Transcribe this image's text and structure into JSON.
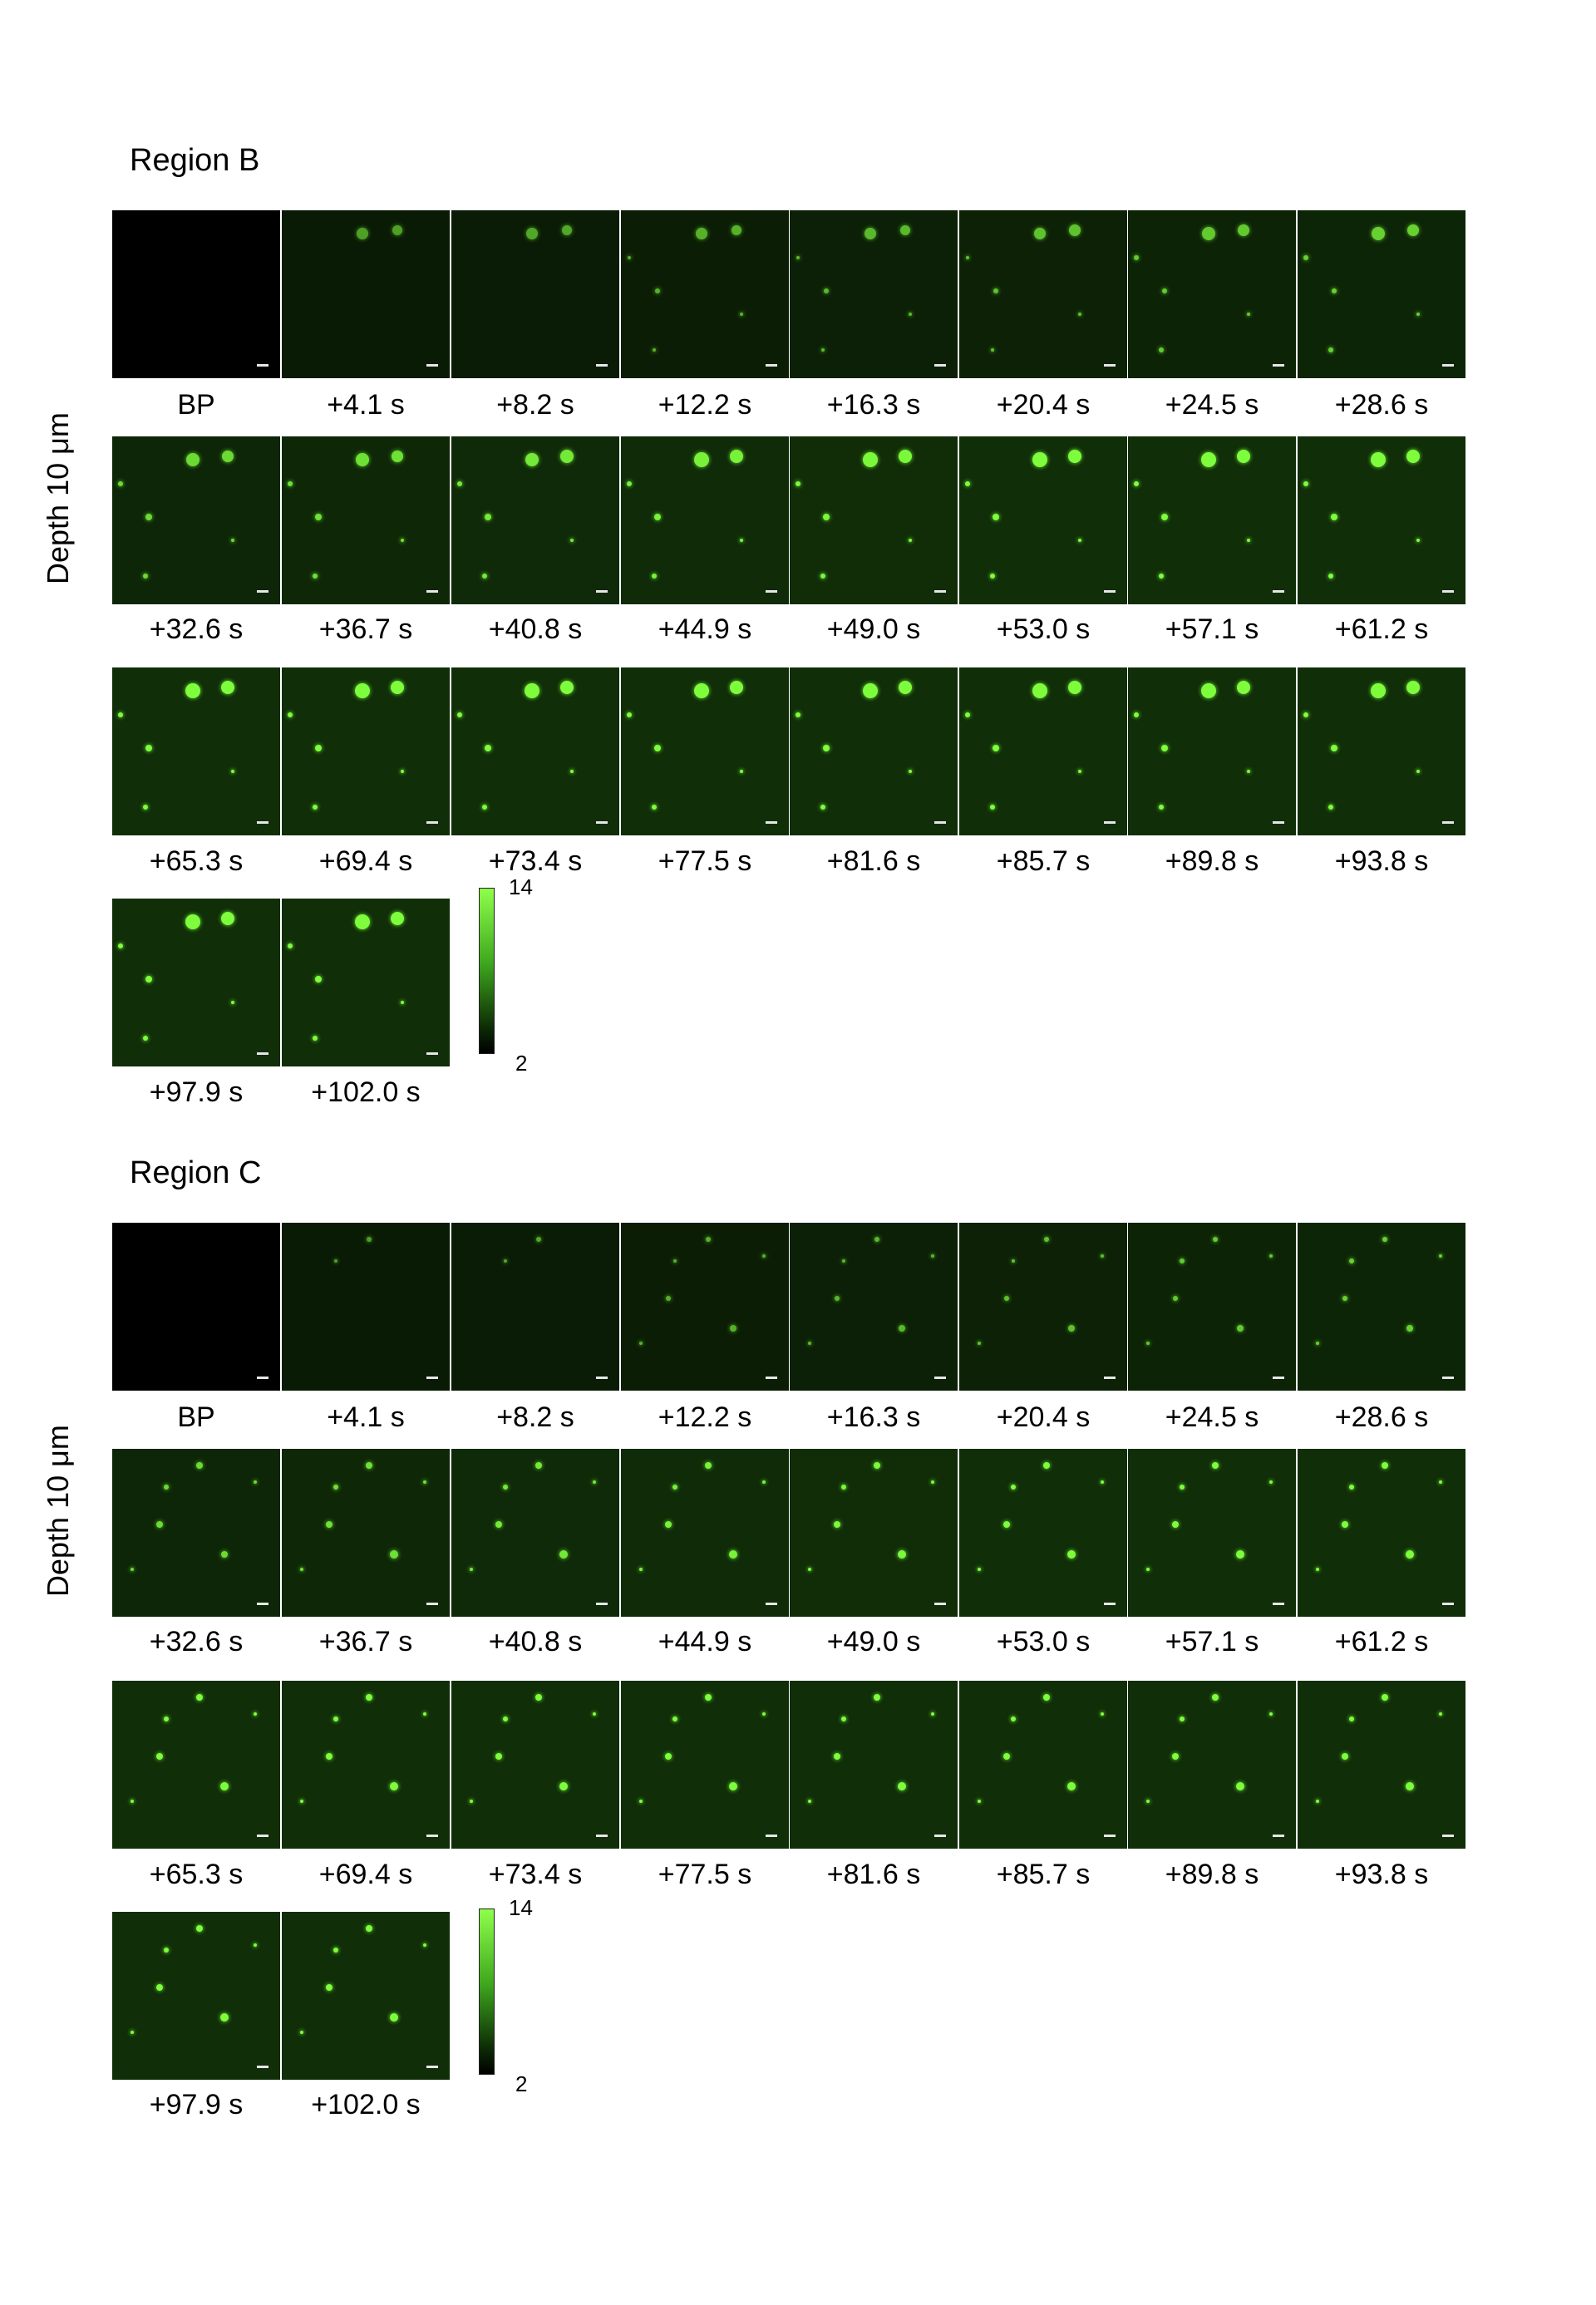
{
  "regions": [
    {
      "title": "Region B",
      "depth_label": "Depth 10 μm",
      "frames": [
        "BP",
        "+4.1 s",
        "+8.2 s",
        "+12.2 s",
        "+16.3 s",
        "+20.4 s",
        "+24.5 s",
        "+28.6 s",
        "+32.6 s",
        "+36.7 s",
        "+40.8 s",
        "+44.9 s",
        "+49.0 s",
        "+53.0 s",
        "+57.1 s",
        "+61.2 s",
        "+65.3 s",
        "+69.4 s",
        "+73.4 s",
        "+77.5 s",
        "+81.6 s",
        "+85.7 s",
        "+89.8 s",
        "+93.8 s",
        "+97.9 s",
        "+102.0 s"
      ],
      "colorbar": {
        "max": "14",
        "min": "2"
      }
    },
    {
      "title": "Region C",
      "depth_label": "Depth 10 μm",
      "frames": [
        "BP",
        "+4.1 s",
        "+8.2 s",
        "+12.2 s",
        "+16.3 s",
        "+20.4 s",
        "+24.5 s",
        "+28.6 s",
        "+32.6 s",
        "+36.7 s",
        "+40.8 s",
        "+44.9 s",
        "+49.0 s",
        "+53.0 s",
        "+57.1 s",
        "+61.2 s",
        "+65.3 s",
        "+69.4 s",
        "+73.4 s",
        "+77.5 s",
        "+81.6 s",
        "+85.7 s",
        "+89.8 s",
        "+93.8 s",
        "+97.9 s",
        "+102.0 s"
      ],
      "colorbar": {
        "max": "14",
        "min": "2"
      }
    }
  ],
  "colors": {
    "colormap_high": "#8dff4a",
    "colormap_low": "#000000",
    "spot": "#7dfd3c"
  }
}
